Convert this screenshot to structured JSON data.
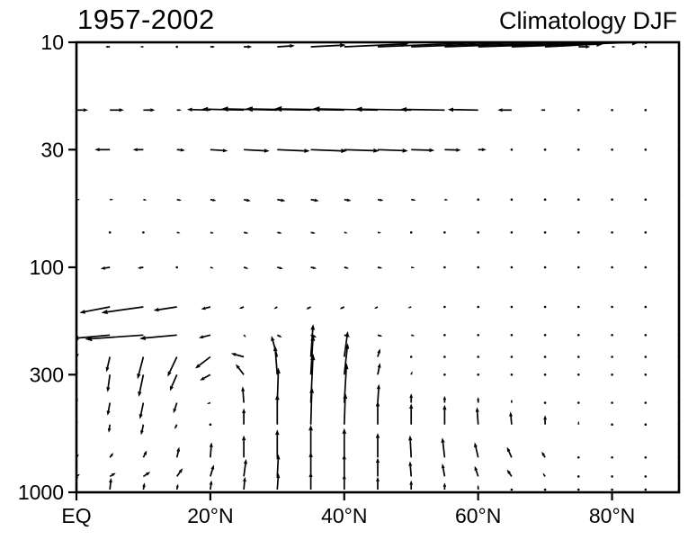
{
  "chart_data": {
    "type": "quiver",
    "title_left": "1957-2002",
    "title_right": "Climatology DJF",
    "description": "Latitude-pressure cross-section of climatological DJF circulation vectors (meridional and vertical components), 1957-2002",
    "x_axis": {
      "range": [
        0,
        90
      ],
      "ticks": [
        {
          "value": 0,
          "label": "EQ"
        },
        {
          "value": 20,
          "label": "20°N"
        },
        {
          "value": 40,
          "label": "40°N"
        },
        {
          "value": 60,
          "label": "60°N"
        },
        {
          "value": 80,
          "label": "80°N"
        }
      ]
    },
    "y_axis": {
      "scale": "log",
      "range": [
        10,
        1000
      ],
      "ticks": [
        {
          "value": 10,
          "label": "10"
        },
        {
          "value": 30,
          "label": "30"
        },
        {
          "value": 100,
          "label": "100"
        },
        {
          "value": 300,
          "label": "300"
        },
        {
          "value": 1000,
          "label": "1000"
        }
      ]
    },
    "latitudes": [
      0,
      5,
      10,
      15,
      20,
      25,
      30,
      35,
      40,
      45,
      50,
      55,
      60,
      65,
      70,
      75,
      80,
      85,
      90
    ],
    "levels": [
      10,
      20,
      30,
      50,
      70,
      100,
      150,
      200,
      250,
      300,
      400,
      500,
      700,
      850,
      1000
    ],
    "vectors": [
      {
        "level": 10,
        "v": [
          -0.3,
          -0.4,
          -0.3,
          0.2,
          0.4,
          0.7,
          1.5,
          3.0,
          5.5,
          8.5,
          11.5,
          14.0,
          15.0,
          11.0,
          5.0,
          1.0,
          0.3,
          0.2,
          0.1
        ],
        "w": [
          0,
          0,
          0,
          0,
          0,
          0,
          0.1,
          0.15,
          0.25,
          0.35,
          0.45,
          0.5,
          0.5,
          0.4,
          0.25,
          0,
          0,
          0,
          0
        ]
      },
      {
        "level": 20,
        "v": [
          1.0,
          1.2,
          1.0,
          0.4,
          -2.0,
          -3.6,
          -4.8,
          -5.6,
          -6.0,
          -5.6,
          -4.8,
          -3.8,
          -2.6,
          -1.2,
          -0.4,
          -0.1,
          0,
          0,
          0
        ],
        "w": [
          0,
          0,
          0,
          0,
          0.05,
          0.08,
          0.1,
          0.1,
          0.1,
          0.1,
          0.08,
          0.06,
          0.04,
          0,
          0,
          0,
          0,
          0,
          0
        ]
      },
      {
        "level": 30,
        "v": [
          -0.4,
          -1.3,
          -0.9,
          0.7,
          1.5,
          2.2,
          2.8,
          3.1,
          3.0,
          2.6,
          2.0,
          1.4,
          0.7,
          0.2,
          0,
          0,
          0,
          0,
          0
        ],
        "w": [
          0,
          0,
          0,
          -0.06,
          -0.1,
          -0.12,
          -0.12,
          -0.12,
          -0.1,
          -0.1,
          -0.06,
          -0.04,
          0,
          0,
          0,
          0,
          0,
          0,
          0
        ]
      },
      {
        "level": 50,
        "v": [
          0.3,
          0.3,
          0.3,
          0.4,
          0.5,
          0.6,
          0.7,
          0.7,
          0.6,
          0.5,
          0.4,
          0.3,
          0.2,
          0.1,
          0,
          0,
          0,
          0,
          0
        ],
        "w": [
          0,
          0,
          -0.05,
          -0.08,
          -0.1,
          -0.12,
          -0.12,
          -0.12,
          -0.1,
          -0.08,
          -0.06,
          -0.04,
          0,
          0,
          0,
          0,
          0,
          0,
          0
        ]
      },
      {
        "level": 70,
        "v": [
          0.2,
          0.2,
          0.2,
          0.3,
          0.3,
          0.4,
          0.4,
          0.4,
          0.3,
          0.3,
          0.2,
          0.2,
          0.1,
          0,
          0,
          0,
          0,
          0,
          0
        ],
        "w": [
          0,
          0,
          -0.04,
          -0.06,
          -0.08,
          -0.08,
          -0.08,
          -0.08,
          -0.06,
          -0.05,
          -0.04,
          0,
          0,
          0,
          0,
          0,
          0,
          0,
          0
        ]
      },
      {
        "level": 100,
        "v": [
          -0.3,
          -0.8,
          -0.5,
          0.2,
          0.3,
          0.4,
          0.5,
          0.5,
          0.4,
          0.4,
          0.3,
          0.2,
          0.1,
          0,
          0,
          0,
          0,
          0,
          0
        ],
        "w": [
          -0.1,
          -0.12,
          -0.08,
          -0.08,
          -0.1,
          -0.12,
          -0.12,
          -0.1,
          -0.1,
          -0.08,
          -0.05,
          0,
          0,
          0,
          0,
          0,
          0,
          0,
          0
        ]
      },
      {
        "level": 150,
        "v": [
          -1.0,
          -2.6,
          -3.6,
          -2.0,
          -0.8,
          -0.4,
          -0.3,
          -0.4,
          -0.4,
          -0.3,
          -0.3,
          -0.2,
          -0.1,
          0,
          0,
          0,
          0,
          0,
          0
        ],
        "w": [
          -0.3,
          -0.5,
          -0.5,
          -0.3,
          -0.2,
          -0.15,
          -0.18,
          -0.2,
          -0.18,
          -0.15,
          -0.1,
          -0.05,
          0,
          0,
          0,
          0,
          0,
          0,
          0
        ]
      },
      {
        "level": 200,
        "v": [
          -1.2,
          -3.2,
          -5.0,
          -3.2,
          -1.0,
          0.2,
          0.4,
          0.5,
          0.5,
          0.4,
          0.3,
          0.2,
          0.1,
          0,
          0,
          0,
          0,
          0,
          0
        ],
        "w": [
          -0.15,
          -0.3,
          -0.35,
          -0.3,
          -0.25,
          -0.2,
          -0.2,
          -0.2,
          -0.15,
          -0.12,
          -0.08,
          0,
          0,
          0,
          0,
          0,
          0,
          0,
          0
        ]
      },
      {
        "level": 250,
        "v": [
          0.2,
          -0.3,
          -0.5,
          -0.8,
          -1.3,
          -1.1,
          -0.5,
          0.2,
          0.3,
          0.2,
          0.1,
          0,
          0,
          0,
          0,
          0,
          0,
          0,
          0
        ],
        "w": [
          0.3,
          -1.3,
          -1.9,
          -1.7,
          -1.0,
          0.3,
          1.8,
          2.8,
          2.2,
          0.7,
          0.1,
          0,
          0,
          0,
          0,
          0,
          0,
          0,
          0
        ]
      },
      {
        "level": 300,
        "v": [
          0.1,
          -0.2,
          -0.4,
          -0.6,
          -0.9,
          -0.7,
          -0.2,
          0.2,
          0.3,
          0.2,
          0.1,
          0,
          0,
          0,
          0,
          0,
          0,
          0,
          0
        ],
        "w": [
          0.3,
          -1.5,
          -1.9,
          -1.4,
          -0.5,
          0.9,
          2.5,
          3.4,
          2.7,
          1.0,
          0.3,
          0.1,
          0.1,
          0.1,
          0,
          0,
          0,
          0,
          0
        ]
      },
      {
        "level": 400,
        "v": [
          0.1,
          -0.2,
          -0.3,
          -0.3,
          -0.3,
          -0.1,
          0.1,
          0.2,
          0.2,
          0.1,
          0,
          0,
          0,
          0,
          0,
          0,
          0,
          0,
          0
        ],
        "w": [
          0.4,
          -1.1,
          -1.4,
          -0.9,
          -0.1,
          1.4,
          3.0,
          4.2,
          3.4,
          1.6,
          0.8,
          0.6,
          0.5,
          0.3,
          0.1,
          0,
          0,
          0,
          0
        ]
      },
      {
        "level": 500,
        "v": [
          0.1,
          -0.1,
          -0.2,
          -0.2,
          -0.1,
          0,
          0,
          0.1,
          0.1,
          0,
          0,
          0,
          -0.1,
          -0.1,
          0,
          0,
          0,
          0,
          0
        ],
        "w": [
          0.3,
          -0.7,
          -0.9,
          -0.4,
          0.2,
          1.4,
          2.6,
          3.2,
          2.7,
          2.0,
          1.8,
          1.7,
          1.5,
          1.1,
          0.8,
          0.3,
          0.1,
          0,
          0
        ]
      },
      {
        "level": 700,
        "v": [
          0.2,
          0.3,
          0.3,
          0.2,
          0.1,
          0,
          0,
          0,
          0,
          0,
          -0.1,
          -0.2,
          -0.3,
          -0.4,
          -0.3,
          -0.1,
          0,
          0,
          0
        ],
        "w": [
          0.3,
          0.4,
          0.6,
          0.9,
          1.3,
          1.9,
          2.4,
          2.8,
          2.5,
          2.1,
          1.9,
          1.7,
          1.3,
          0.9,
          0.5,
          0.2,
          0.1,
          0,
          0
        ]
      },
      {
        "level": 850,
        "v": [
          0.3,
          0.5,
          0.6,
          0.5,
          0.3,
          0.2,
          0.1,
          0,
          0,
          0,
          -0.1,
          -0.2,
          -0.3,
          -0.4,
          -0.2,
          -0.1,
          0,
          0,
          0
        ],
        "w": [
          0.2,
          0.3,
          0.4,
          0.7,
          1.0,
          1.5,
          1.9,
          2.1,
          1.9,
          1.6,
          1.3,
          1.1,
          0.9,
          0.6,
          0.3,
          0.1,
          0,
          0,
          0
        ]
      },
      {
        "level": 1000,
        "v": [
          0,
          0.1,
          0.1,
          0.1,
          0.1,
          0.1,
          0.1,
          0,
          0,
          0,
          0,
          0,
          0,
          0,
          0,
          0,
          0,
          0,
          0
        ],
        "w": [
          1.4,
          1.0,
          0.6,
          0.5,
          0.8,
          1.1,
          1.4,
          1.5,
          1.3,
          1.1,
          0.8,
          0.6,
          0.4,
          0.2,
          0.1,
          0,
          0,
          0,
          0
        ]
      }
    ],
    "style": {
      "color": "#000000",
      "background": "#ffffff",
      "grid": false,
      "legend": false
    }
  }
}
